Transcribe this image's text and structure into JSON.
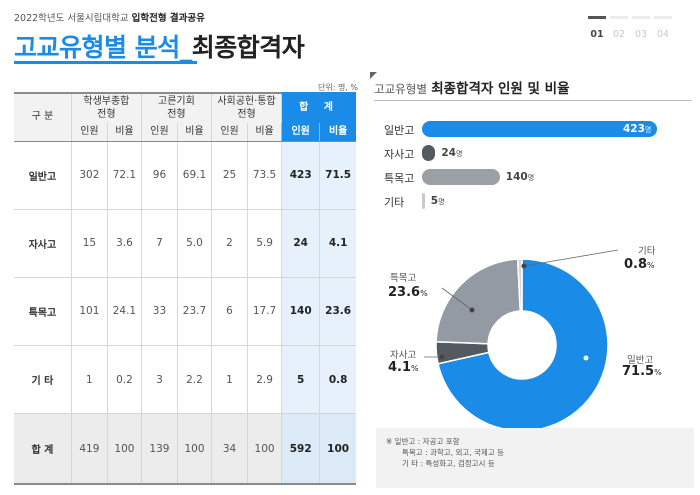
{
  "header": {
    "year_label": "2022학년도 서울시립대학교",
    "report_bold": "입학전형 결과공유",
    "title_blue": "고교유형별 분석",
    "title_sep": "_",
    "title_dark": "최종합격자"
  },
  "pager": {
    "pages": [
      "01",
      "02",
      "03",
      "04"
    ],
    "active_index": 0
  },
  "table": {
    "unit": "단위: 명, %",
    "header": {
      "gubun": "구 분",
      "groups": [
        "학생부종합\n전형",
        "고른기회\n전형",
        "사회공헌·통합\n전형"
      ],
      "sum": "합 계",
      "sub_count": "인원",
      "sub_ratio": "비율"
    },
    "rows": [
      {
        "label": "일반고",
        "cells": [
          "302",
          "72.1",
          "96",
          "69.1",
          "25",
          "73.5"
        ],
        "sum_count": "423",
        "sum_ratio": "71.5"
      },
      {
        "label": "자사고",
        "cells": [
          "15",
          "3.6",
          "7",
          "5.0",
          "2",
          "5.9"
        ],
        "sum_count": "24",
        "sum_ratio": "4.1"
      },
      {
        "label": "특목고",
        "cells": [
          "101",
          "24.1",
          "33",
          "23.7",
          "6",
          "17.7"
        ],
        "sum_count": "140",
        "sum_ratio": "23.6"
      },
      {
        "label": "기 타",
        "cells": [
          "1",
          "0.2",
          "3",
          "2.2",
          "1",
          "2.9"
        ],
        "sum_count": "5",
        "sum_ratio": "0.8"
      }
    ],
    "total": {
      "label": "합 계",
      "cells": [
        "419",
        "100",
        "139",
        "100",
        "34",
        "100"
      ],
      "sum_count": "592",
      "sum_ratio": "100"
    }
  },
  "right_panel": {
    "title_prefix": "고교유형별",
    "title_main": "최종합격자 인원 및 비율"
  },
  "chart_data": [
    {
      "type": "bar",
      "orientation": "horizontal",
      "categories": [
        "일반고",
        "자사고",
        "특목고",
        "기타"
      ],
      "values": [
        423,
        24,
        140,
        5
      ],
      "value_unit": "명",
      "colors": [
        "#1a8be6",
        "#555a60",
        "#9aa0a6",
        "#c8cbce"
      ]
    },
    {
      "type": "pie",
      "style": "donut",
      "labels": [
        "일반고",
        "자사고",
        "특목고",
        "기타"
      ],
      "values": [
        71.5,
        4.1,
        23.6,
        0.8
      ],
      "value_unit": "%",
      "colors": [
        "#1a8be6",
        "#555a60",
        "#939aa3",
        "#d3d6d9"
      ]
    }
  ],
  "note": {
    "line1": "※ 일반고 : 자공고 포함",
    "line2": "특목고 : 과학고, 외고, 국제고 등",
    "line3": "기   타 : 특성화고, 검정고시 등"
  }
}
